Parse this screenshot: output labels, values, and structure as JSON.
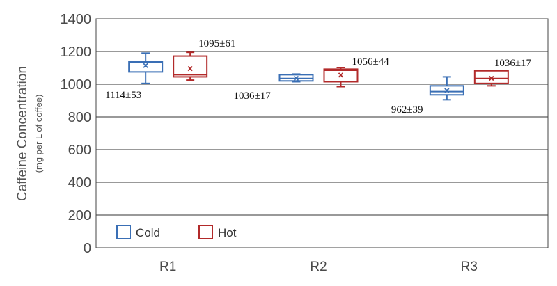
{
  "chart_data": {
    "type": "box",
    "categories": [
      "R1",
      "R2",
      "R3"
    ],
    "ylabel": "Caffeine Concentration",
    "ylabel_sub": "(mg per L of coffee)",
    "ylim": [
      0,
      1400
    ],
    "yticks": [
      0,
      200,
      400,
      600,
      800,
      1000,
      1200,
      1400
    ],
    "grid": true,
    "legend_position": "bottom-left",
    "series": [
      {
        "name": "Cold",
        "color": "#3a6fb5",
        "boxes": [
          {
            "min": 1005,
            "q1": 1075,
            "median": 1135,
            "q3": 1140,
            "max": 1190,
            "mean": 1114,
            "label": "1114±53"
          },
          {
            "min": 1015,
            "q1": 1020,
            "median": 1035,
            "q3": 1058,
            "max": 1062,
            "mean": 1036,
            "label": "1036±17"
          },
          {
            "min": 905,
            "q1": 935,
            "median": 955,
            "q3": 990,
            "max": 1045,
            "mean": 962,
            "label": "962±39"
          }
        ]
      },
      {
        "name": "Hot",
        "color": "#b22a2a",
        "boxes": [
          {
            "min": 1025,
            "q1": 1045,
            "median": 1058,
            "q3": 1172,
            "max": 1195,
            "mean": 1095,
            "label": "1095±61"
          },
          {
            "min": 985,
            "q1": 1015,
            "median": 1085,
            "q3": 1092,
            "max": 1102,
            "mean": 1056,
            "label": "1056±44"
          },
          {
            "min": 990,
            "q1": 1005,
            "median": 1035,
            "q3": 1082,
            "max": 1082,
            "mean": 1036,
            "label": "1036±17"
          }
        ]
      }
    ]
  }
}
